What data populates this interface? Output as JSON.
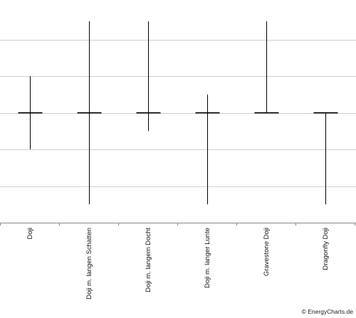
{
  "chart_data": {
    "type": "candlestick",
    "categories": [
      "Doji",
      "Doji m. langen Schatten",
      "Doji m. langem Docht",
      "Doji m. langer Lunte",
      "Gravestone Doji",
      "Dragonfly Doji"
    ],
    "series": [
      {
        "open": [
          0,
          0,
          0,
          0,
          0,
          0
        ],
        "close": [
          0,
          0,
          0,
          0,
          0,
          0
        ],
        "high": [
          2,
          5,
          5,
          1,
          5,
          0
        ],
        "low": [
          -2,
          -5,
          -1,
          -5,
          0,
          -5
        ]
      }
    ],
    "ylim": [
      -6,
      5.5
    ],
    "yticks": [
      -4,
      -2,
      0,
      2,
      4
    ],
    "grid": true,
    "colors": {
      "line": "#000000",
      "grid": "#d0d0d0",
      "axis": "#888888"
    }
  },
  "footer": {
    "copyright": "© EnergyCharts.de"
  }
}
